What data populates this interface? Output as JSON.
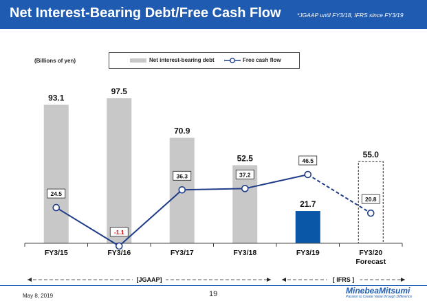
{
  "header": {
    "title": "Net Interest-Bearing Debt/Free Cash Flow",
    "note": "*JGAAP until FY3/18, IFRS since FY3/19"
  },
  "chart_data": {
    "type": "bar",
    "unit_label": "(Billions of yen)",
    "categories": [
      "FY3/15",
      "FY3/16",
      "FY3/17",
      "FY3/18",
      "FY3/19",
      "FY3/20"
    ],
    "category_sublabels": [
      "",
      "",
      "",
      "",
      "",
      "Forecast"
    ],
    "series": [
      {
        "name": "Net interest-bearing debt",
        "kind": "bar",
        "values": [
          93.1,
          97.5,
          70.9,
          52.5,
          21.7,
          55.0
        ],
        "labels": [
          "93.1",
          "97.5",
          "70.9",
          "52.5",
          "21.7",
          "55.0"
        ],
        "color": "#c8c8c8",
        "highlight_color": "#0a57a8",
        "highlight_index": 4,
        "forecast_index": 5
      },
      {
        "name": "Free cash flow",
        "kind": "line",
        "values": [
          24.5,
          -1.1,
          36.3,
          37.2,
          46.5,
          20.8
        ],
        "labels": [
          "24.5",
          "-1.1",
          "36.3",
          "37.2",
          "46.5",
          "20.8"
        ],
        "color": "#1f3c88",
        "negative_label_color": "#cc0000",
        "dashed_from_index": 4
      }
    ],
    "ylim": [
      -1.1,
      97.5
    ],
    "grid": false,
    "legend_position": "top-center",
    "periods": [
      {
        "label": "[JGAAP]",
        "start_index": 0,
        "end_index": 3
      },
      {
        "label": "[ IFRS ]",
        "start_index": 4,
        "end_index": 5
      }
    ]
  },
  "footer": {
    "date": "May 8, 2019",
    "page": "19",
    "logo": "MinebeaMitsumi",
    "tagline": "Passion to Create Value through Difference"
  },
  "colors": {
    "header_bg": "#1f5bb1",
    "bar": "#c8c8c8",
    "bar_highlight": "#0a57a8",
    "line": "#1f3c88"
  }
}
